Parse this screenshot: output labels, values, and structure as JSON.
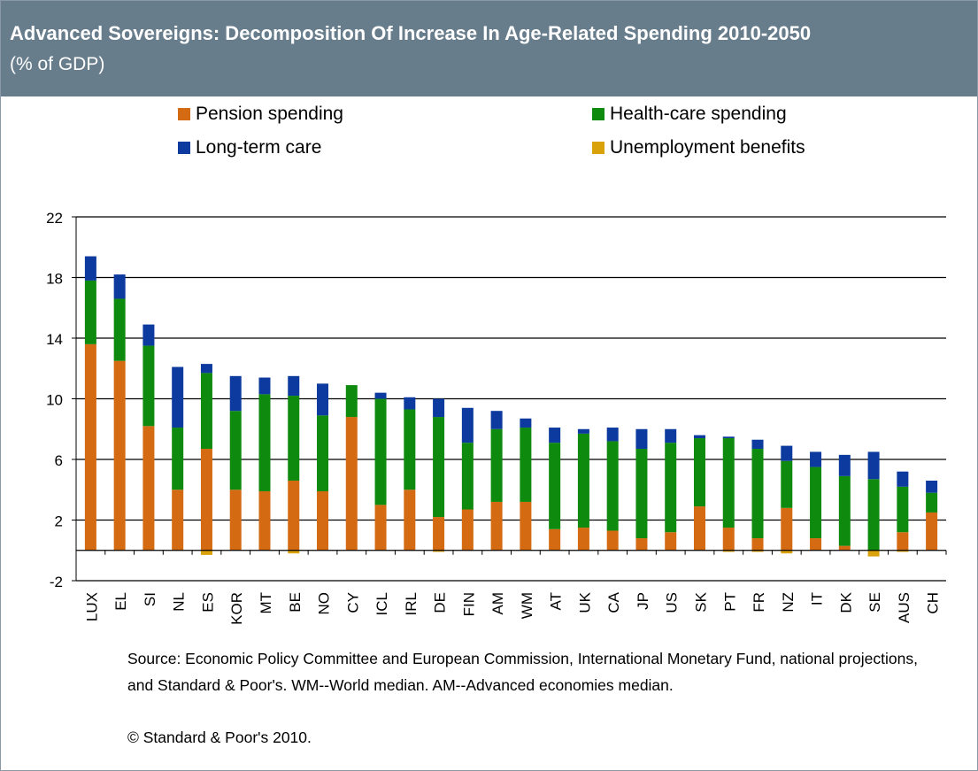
{
  "header": {
    "title": "Advanced Sovereigns: Decomposition Of Increase In Age-Related Spending 2010-2050",
    "subtitle": "(% of GDP)"
  },
  "colors": {
    "header_bg": "#687d8c",
    "pension": "#d46a11",
    "health": "#0e8a0e",
    "ltc": "#0d3a9e",
    "unemployment": "#d9a10a"
  },
  "legend": {
    "pension": "Pension spending",
    "health": "Health-care spending",
    "ltc": "Long-term care",
    "unemployment": "Unemployment benefits"
  },
  "footer": {
    "source": "Source: Economic Policy Committee and European Commission, International Monetary Fund, national projections, and Standard & Poor's. WM--World median. AM--Advanced economies median.",
    "copyright": "© Standard & Poor's 2010."
  },
  "chart_data": {
    "type": "bar",
    "stacked": true,
    "ylim": [
      -2,
      22
    ],
    "yticks": [
      -2,
      2,
      6,
      10,
      14,
      18,
      22
    ],
    "grid": true,
    "legend_position": "top",
    "categories": [
      "LUX",
      "EL",
      "SI",
      "NL",
      "ES",
      "KOR",
      "MT",
      "BE",
      "NO",
      "CY",
      "ICL",
      "IRL",
      "DE",
      "FIN",
      "AM",
      "WM",
      "AT",
      "UK",
      "CA",
      "JP",
      "US",
      "SK",
      "PT",
      "FR",
      "NZ",
      "IT",
      "DK",
      "SE",
      "AUS",
      "CH"
    ],
    "series": [
      {
        "name": "Pension spending",
        "key": "pension",
        "values": [
          13.6,
          12.5,
          8.2,
          4.0,
          6.7,
          4.0,
          3.9,
          4.6,
          3.9,
          8.8,
          3.0,
          4.0,
          2.2,
          2.7,
          3.2,
          3.2,
          1.4,
          1.5,
          1.3,
          0.8,
          1.2,
          2.9,
          1.5,
          0.8,
          2.8,
          0.8,
          0.3,
          0.0,
          1.2,
          2.5
        ]
      },
      {
        "name": "Health-care spending",
        "key": "health",
        "values": [
          4.2,
          4.1,
          5.3,
          4.1,
          5.0,
          5.2,
          6.4,
          5.6,
          5.0,
          2.1,
          7.0,
          5.3,
          6.6,
          4.4,
          4.8,
          4.9,
          5.7,
          6.2,
          5.9,
          5.9,
          5.9,
          4.5,
          5.9,
          5.9,
          3.1,
          4.7,
          4.6,
          4.7,
          3.0,
          1.3
        ]
      },
      {
        "name": "Long-term care",
        "key": "ltc",
        "values": [
          1.6,
          1.6,
          1.4,
          4.0,
          0.6,
          2.3,
          1.1,
          1.3,
          2.1,
          0.0,
          0.4,
          0.8,
          1.2,
          2.3,
          1.2,
          0.6,
          1.0,
          0.3,
          0.9,
          1.3,
          0.9,
          0.2,
          0.1,
          0.6,
          1.0,
          1.0,
          1.4,
          1.8,
          1.0,
          0.8
        ]
      },
      {
        "name": "Unemployment benefits",
        "key": "unemployment",
        "values": [
          0,
          0,
          0,
          0,
          -0.3,
          0,
          0,
          -0.2,
          0,
          0,
          0,
          0,
          -0.1,
          0,
          0,
          0,
          0,
          0,
          0,
          0,
          0,
          0,
          -0.1,
          -0.1,
          -0.2,
          0,
          0,
          -0.4,
          -0.1,
          0
        ]
      }
    ]
  }
}
